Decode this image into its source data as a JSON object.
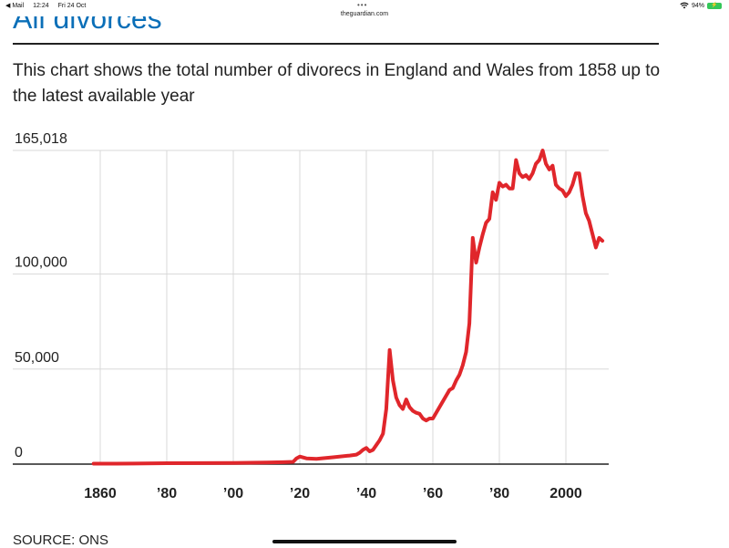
{
  "status_bar": {
    "back_app": "◀ Mail",
    "time": "12:24",
    "date": "Fri 24 Oct",
    "url": "theguardian.com",
    "battery": "94%"
  },
  "article": {
    "heading": "All divorces",
    "subtitle": "This chart shows the total number of divorecs in England and Wales from 1858 up to the latest available year",
    "source": "SOURCE: ONS"
  },
  "colors": {
    "line": "#e0262b",
    "heading": "#0a6fb8",
    "grid": "#d9d9d9",
    "axis": "#222222"
  },
  "chart_data": {
    "type": "line",
    "title": "",
    "xlabel": "",
    "ylabel": "",
    "xlim": [
      1858,
      2012
    ],
    "ylim": [
      0,
      165018
    ],
    "y_ticks": [
      {
        "value": 0,
        "label": "0"
      },
      {
        "value": 50000,
        "label": "50,000"
      },
      {
        "value": 100000,
        "label": "100,000"
      },
      {
        "value": 165018,
        "label": "165,018"
      }
    ],
    "x_ticks": [
      {
        "value": 1860,
        "label": "1860"
      },
      {
        "value": 1880,
        "label": "’80"
      },
      {
        "value": 1900,
        "label": "’00"
      },
      {
        "value": 1920,
        "label": "’20"
      },
      {
        "value": 1940,
        "label": "’40"
      },
      {
        "value": 1960,
        "label": "’60"
      },
      {
        "value": 1980,
        "label": "’80"
      },
      {
        "value": 2000,
        "label": "2000"
      }
    ],
    "x_gridlines": [
      1860,
      1880,
      1900,
      1920,
      1940,
      1960,
      1980,
      2000
    ],
    "grid": true,
    "series": [
      {
        "color": "#e0262b",
        "x": [
          1858,
          1870,
          1880,
          1890,
          1900,
          1910,
          1915,
          1918,
          1919,
          1920,
          1921,
          1922,
          1925,
          1930,
          1935,
          1937,
          1938,
          1939,
          1940,
          1941,
          1942,
          1943,
          1944,
          1945,
          1946,
          1947,
          1948,
          1949,
          1950,
          1951,
          1952,
          1953,
          1954,
          1955,
          1956,
          1957,
          1958,
          1959,
          1960,
          1962,
          1964,
          1965,
          1966,
          1967,
          1968,
          1969,
          1970,
          1971,
          1972,
          1973,
          1974,
          1975,
          1976,
          1977,
          1978,
          1979,
          1980,
          1981,
          1982,
          1983,
          1984,
          1985,
          1986,
          1987,
          1988,
          1989,
          1990,
          1991,
          1992,
          1993,
          1994,
          1995,
          1996,
          1997,
          1998,
          1999,
          2000,
          2001,
          2002,
          2003,
          2004,
          2005,
          2006,
          2007,
          2008,
          2009,
          2010,
          2011
        ],
        "y": [
          250,
          300,
          500,
          550,
          600,
          800,
          1000,
          1200,
          3000,
          4000,
          3500,
          3000,
          2800,
          3600,
          4500,
          5000,
          6000,
          7500,
          8500,
          6700,
          7500,
          10000,
          12500,
          16000,
          29000,
          60000,
          44000,
          35000,
          31000,
          29000,
          34000,
          30000,
          28000,
          27000,
          26500,
          24000,
          23000,
          24000,
          24000,
          30000,
          36000,
          39000,
          40000,
          44000,
          47000,
          52000,
          59000,
          74000,
          119000,
          106000,
          114000,
          121000,
          127000,
          129000,
          143000,
          139000,
          148000,
          146000,
          147000,
          145000,
          145000,
          160000,
          153000,
          151000,
          152000,
          150000,
          153000,
          158000,
          160000,
          165018,
          158000,
          155000,
          157000,
          147000,
          145000,
          144000,
          141000,
          143000,
          147000,
          153000,
          153000,
          141000,
          132000,
          128000,
          121000,
          114000,
          119000,
          117500
        ]
      }
    ]
  }
}
